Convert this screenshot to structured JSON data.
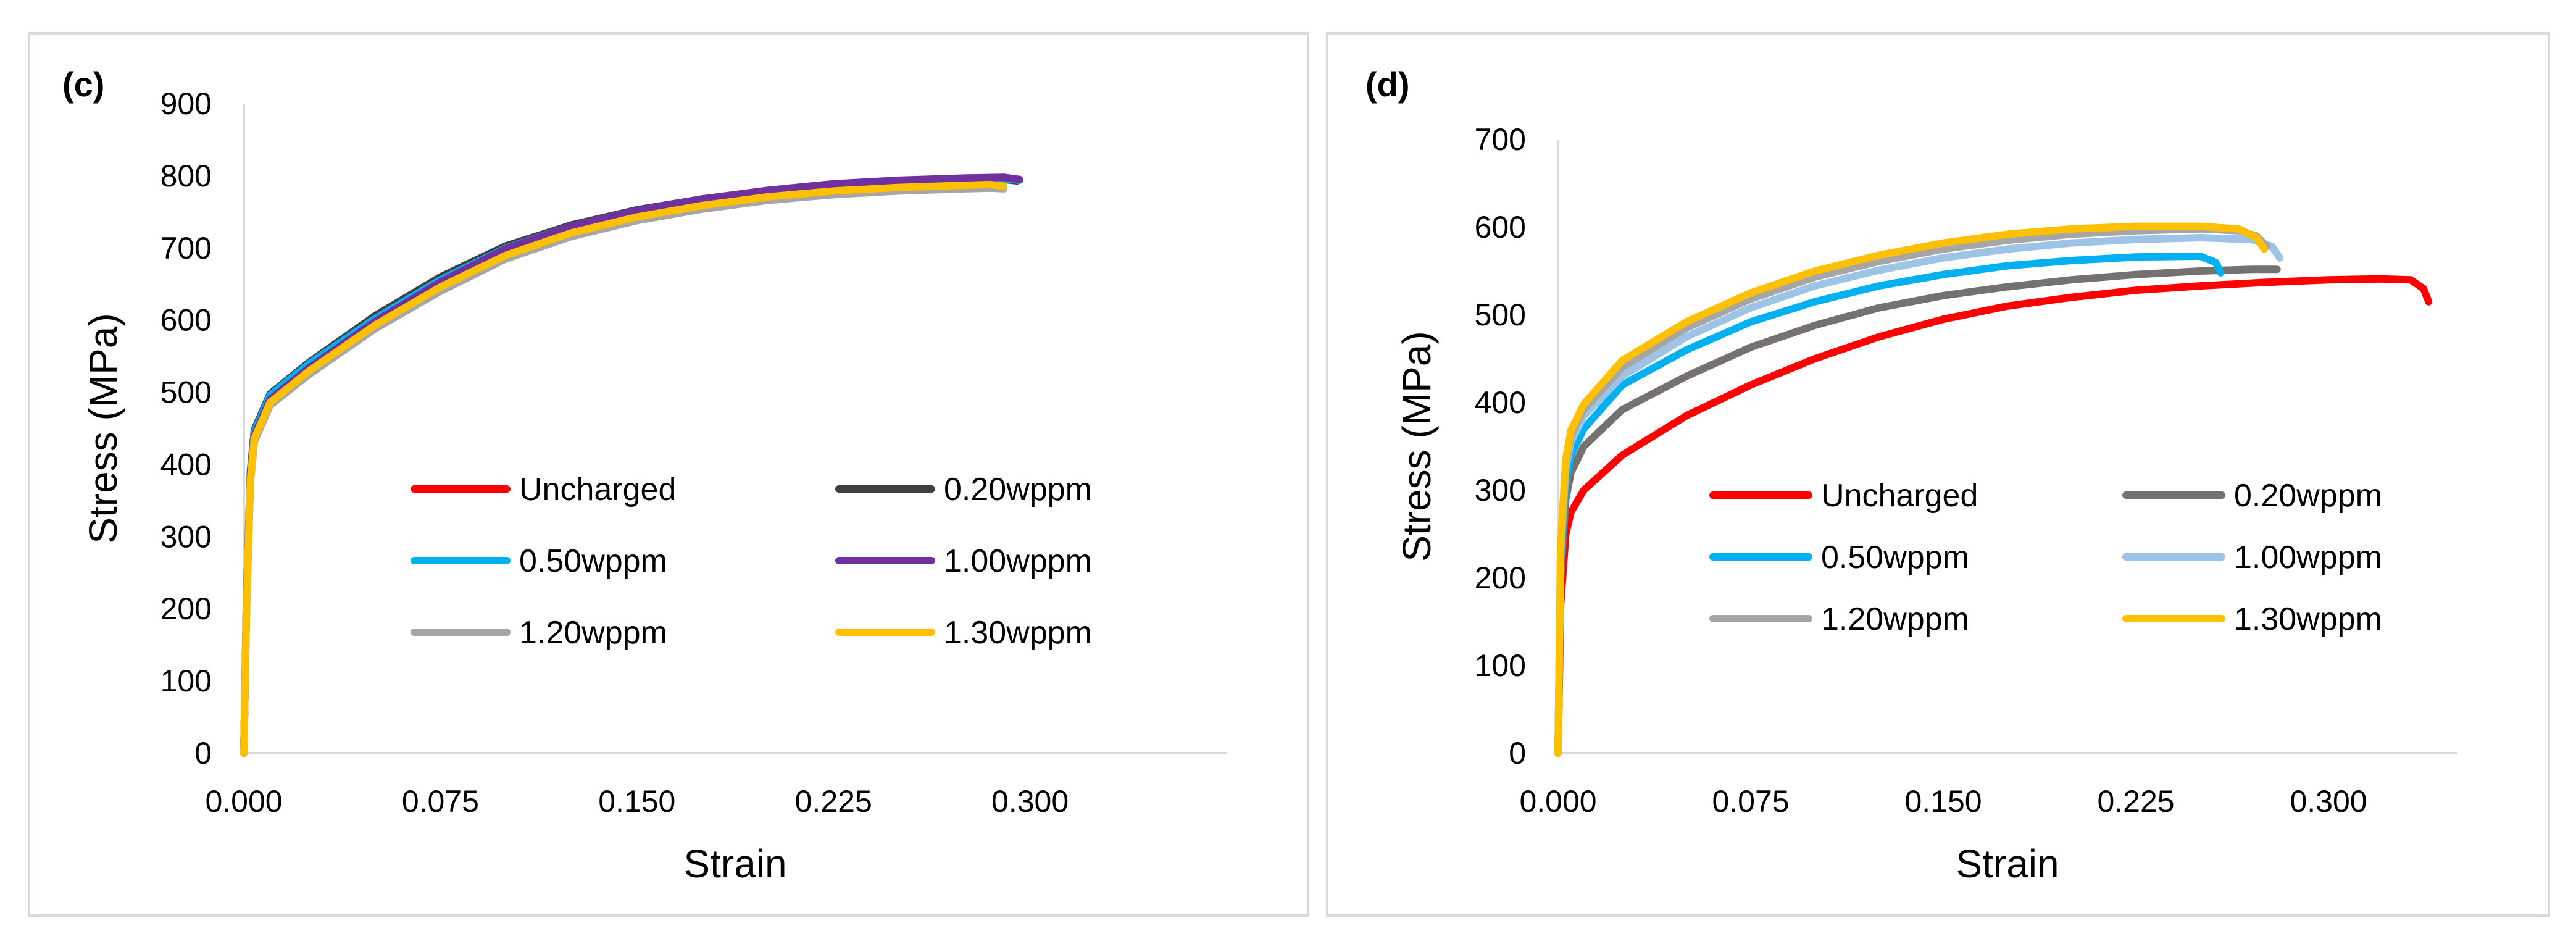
{
  "chart_data": [
    {
      "panel_label": "(c)",
      "type": "line",
      "xlabel": "Strain",
      "ylabel": "Stress (MPa)",
      "xlim": [
        0,
        0.375
      ],
      "ylim": [
        0,
        900
      ],
      "xticks": [
        "0.000",
        "0.075",
        "0.150",
        "0.225",
        "0.300"
      ],
      "xtick_values": [
        0,
        0.075,
        0.15,
        0.225,
        0.3
      ],
      "yticks": [
        "0",
        "100",
        "200",
        "300",
        "400",
        "500",
        "600",
        "700",
        "800",
        "900"
      ],
      "ytick_values": [
        0,
        100,
        200,
        300,
        400,
        500,
        600,
        700,
        800,
        900
      ],
      "legend_columns": 2,
      "series": [
        {
          "name": "Uncharged",
          "color": "#ff0000",
          "x": [
            0,
            0.001,
            0.0025,
            0.004,
            0.01,
            0.025,
            0.05,
            0.075,
            0.1,
            0.125,
            0.15,
            0.175,
            0.2,
            0.225,
            0.25,
            0.275,
            0.29,
            0.295
          ],
          "y": [
            0,
            200,
            380,
            440,
            492,
            535,
            600,
            655,
            700,
            730,
            752,
            768,
            780,
            788,
            793,
            796,
            797,
            795
          ]
        },
        {
          "name": "0.20wppm",
          "color": "#404040",
          "x": [
            0,
            0.001,
            0.0025,
            0.004,
            0.01,
            0.025,
            0.05,
            0.075,
            0.1,
            0.125,
            0.15,
            0.175,
            0.2,
            0.225,
            0.25,
            0.275,
            0.29,
            0.295
          ],
          "y": [
            0,
            210,
            390,
            448,
            498,
            542,
            606,
            660,
            703,
            732,
            753,
            768,
            779,
            787,
            792,
            795,
            795,
            793
          ]
        },
        {
          "name": "0.50wppm",
          "color": "#00b0f0",
          "x": [
            0,
            0.001,
            0.0025,
            0.004,
            0.01,
            0.025,
            0.05,
            0.075,
            0.1,
            0.125,
            0.15,
            0.175,
            0.2,
            0.225,
            0.25,
            0.275,
            0.29,
            0.296
          ],
          "y": [
            0,
            205,
            385,
            445,
            496,
            540,
            602,
            656,
            700,
            730,
            752,
            767,
            779,
            787,
            792,
            795,
            796,
            794
          ]
        },
        {
          "name": "1.00wppm",
          "color": "#7030a0",
          "x": [
            0,
            0.001,
            0.0025,
            0.004,
            0.01,
            0.025,
            0.05,
            0.075,
            0.1,
            0.125,
            0.15,
            0.175,
            0.2,
            0.225,
            0.25,
            0.275,
            0.29,
            0.296
          ],
          "y": [
            0,
            200,
            382,
            440,
            490,
            534,
            598,
            653,
            699,
            730,
            752,
            768,
            780,
            789,
            794,
            797,
            798,
            795
          ]
        },
        {
          "name": "1.20wppm",
          "color": "#a6a6a6",
          "x": [
            0,
            0.001,
            0.0025,
            0.004,
            0.01,
            0.025,
            0.05,
            0.075,
            0.1,
            0.125,
            0.15,
            0.175,
            0.2,
            0.225,
            0.25,
            0.275,
            0.285,
            0.29
          ],
          "y": [
            0,
            195,
            375,
            432,
            482,
            525,
            588,
            640,
            685,
            716,
            738,
            754,
            766,
            774,
            779,
            782,
            783,
            782
          ]
        },
        {
          "name": "1.30wppm",
          "color": "#ffc000",
          "x": [
            0,
            0.001,
            0.0025,
            0.004,
            0.01,
            0.025,
            0.05,
            0.075,
            0.1,
            0.125,
            0.15,
            0.175,
            0.2,
            0.225,
            0.25,
            0.275,
            0.285,
            0.29
          ],
          "y": [
            0,
            198,
            378,
            436,
            486,
            530,
            593,
            646,
            690,
            721,
            743,
            759,
            771,
            779,
            784,
            787,
            788,
            786
          ]
        }
      ]
    },
    {
      "panel_label": "(d)",
      "type": "line",
      "xlabel": "Strain",
      "ylabel": "Stress (MPa)",
      "xlim": [
        0,
        0.35
      ],
      "ylim": [
        0,
        700
      ],
      "xticks": [
        "0.000",
        "0.075",
        "0.150",
        "0.225",
        "0.300"
      ],
      "xtick_values": [
        0,
        0.075,
        0.15,
        0.225,
        0.3
      ],
      "yticks": [
        "0",
        "100",
        "200",
        "300",
        "400",
        "500",
        "600",
        "700"
      ],
      "ytick_values": [
        0,
        100,
        200,
        300,
        400,
        500,
        600,
        700
      ],
      "legend_columns": 2,
      "series": [
        {
          "name": "Uncharged",
          "color": "#ff0000",
          "x": [
            0,
            0.001,
            0.003,
            0.005,
            0.01,
            0.025,
            0.05,
            0.075,
            0.1,
            0.125,
            0.15,
            0.175,
            0.2,
            0.225,
            0.25,
            0.275,
            0.3,
            0.32,
            0.332,
            0.337,
            0.339
          ],
          "y": [
            0,
            170,
            250,
            275,
            300,
            340,
            385,
            420,
            450,
            475,
            495,
            510,
            520,
            528,
            533,
            537,
            540,
            541,
            540,
            530,
            515
          ]
        },
        {
          "name": "0.20wppm",
          "color": "#767171",
          "x": [
            0,
            0.001,
            0.003,
            0.005,
            0.01,
            0.025,
            0.05,
            0.075,
            0.1,
            0.125,
            0.15,
            0.175,
            0.2,
            0.225,
            0.25,
            0.27,
            0.28
          ],
          "y": [
            0,
            200,
            290,
            320,
            350,
            392,
            430,
            463,
            488,
            508,
            522,
            532,
            540,
            546,
            550,
            552,
            552
          ]
        },
        {
          "name": "0.50wppm",
          "color": "#00b0f0",
          "x": [
            0,
            0.001,
            0.003,
            0.005,
            0.01,
            0.025,
            0.05,
            0.075,
            0.1,
            0.125,
            0.15,
            0.175,
            0.2,
            0.225,
            0.25,
            0.256,
            0.258
          ],
          "y": [
            0,
            220,
            310,
            340,
            370,
            420,
            460,
            492,
            515,
            533,
            546,
            556,
            562,
            566,
            567,
            560,
            548
          ]
        },
        {
          "name": "1.00wppm",
          "color": "#9dc3e6",
          "x": [
            0,
            0.001,
            0.003,
            0.005,
            0.01,
            0.025,
            0.05,
            0.075,
            0.1,
            0.125,
            0.15,
            0.175,
            0.2,
            0.225,
            0.25,
            0.27,
            0.278,
            0.281
          ],
          "y": [
            0,
            230,
            325,
            355,
            385,
            430,
            475,
            508,
            533,
            551,
            565,
            575,
            582,
            586,
            588,
            586,
            578,
            565
          ]
        },
        {
          "name": "1.20wppm",
          "color": "#a6a6a6",
          "x": [
            0,
            0.001,
            0.003,
            0.005,
            0.01,
            0.025,
            0.05,
            0.075,
            0.1,
            0.125,
            0.15,
            0.175,
            0.2,
            0.225,
            0.25,
            0.265,
            0.272,
            0.276
          ],
          "y": [
            0,
            235,
            330,
            362,
            392,
            440,
            485,
            518,
            543,
            561,
            575,
            585,
            592,
            596,
            598,
            596,
            590,
            578
          ]
        },
        {
          "name": "1.30wppm",
          "color": "#ffc000",
          "x": [
            0,
            0.001,
            0.003,
            0.005,
            0.01,
            0.025,
            0.05,
            0.075,
            0.1,
            0.125,
            0.15,
            0.175,
            0.2,
            0.225,
            0.25,
            0.265,
            0.272,
            0.275
          ],
          "y": [
            0,
            240,
            335,
            368,
            398,
            448,
            492,
            525,
            550,
            568,
            582,
            592,
            598,
            601,
            601,
            598,
            588,
            575
          ]
        }
      ]
    }
  ]
}
